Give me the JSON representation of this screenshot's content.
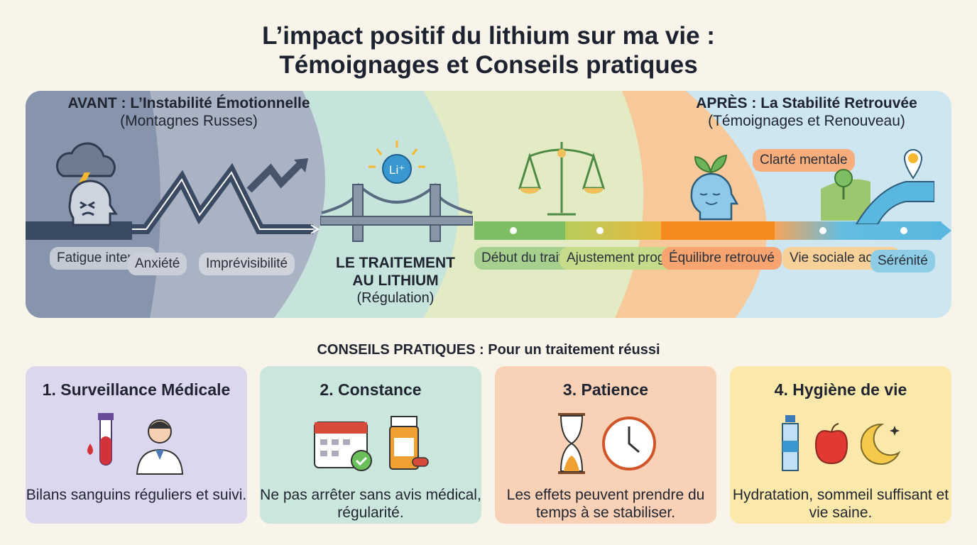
{
  "title": {
    "line1": "L’impact positif du lithium sur ma vie :",
    "line2": "Témoignages et Conseils pratiques"
  },
  "before": {
    "heading": "AVANT : L’Instabilité Émotionnelle",
    "subheading": "(Montagnes Russes)",
    "labels": [
      "Fatigue intense",
      "Anxiété",
      "Imprévisibilité"
    ]
  },
  "treatment": {
    "line1": "LE TRAITEMENT",
    "line2": "AU LITHIUM",
    "sub": "(Régulation)",
    "badge": "Li+"
  },
  "middle": {
    "labels": [
      "Début du traitement",
      "Ajustement progressif"
    ]
  },
  "after": {
    "heading": "APRÈS : La Stabilité Retrouvée",
    "subheading": "(Témoignages et Renouveau)",
    "labels": [
      "Équilibre retrouvé",
      "Clarté mentale",
      "Vie sociale active",
      "Sérénité"
    ]
  },
  "tips": {
    "heading": "CONSEILS PRATIQUES : Pour un traitement réussi",
    "cards": [
      {
        "title": "1. Surveillance Médicale",
        "text": "Bilans sanguins réguliers et suivi.",
        "color": "#dcd7ef"
      },
      {
        "title": "2. Constance",
        "text": "Ne pas arrêter sans avis médical, régularité.",
        "color": "#cbe7dd"
      },
      {
        "title": "3. Patience",
        "text": "Les effets peuvent prendre du temps à se stabiliser.",
        "color": "#f9d1b6"
      },
      {
        "title": "4. Hygiène de vie",
        "text": "Hydratation, sommeil suffisant et vie saine.",
        "color": "#fbe8ab"
      }
    ]
  }
}
